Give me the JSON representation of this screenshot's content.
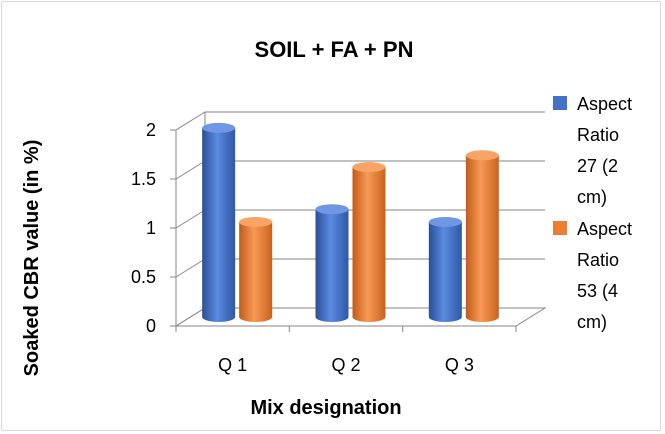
{
  "chart_data": {
    "type": "bar",
    "title": "SOIL + FA + PN",
    "xlabel": "Mix designation",
    "ylabel": "Soaked CBR value (in %)",
    "categories": [
      "Q 1",
      "Q 2",
      "Q 3"
    ],
    "ylim": [
      0,
      2
    ],
    "yticks": [
      "0",
      "0.5",
      "1",
      "1.5",
      "2"
    ],
    "grid": true,
    "legend_position": "right",
    "series": [
      {
        "name": "Aspect Ratio 27 (2 cm)",
        "legend_lines": [
          "Aspect",
          "Ratio",
          "27 (2",
          "cm)"
        ],
        "color": "#4472c4",
        "values": [
          1.93,
          1.1,
          0.97
        ]
      },
      {
        "name": "Aspect Ratio 53 (4 cm)",
        "legend_lines": [
          "Aspect",
          "Ratio",
          "53 (4",
          "cm)"
        ],
        "color": "#ed7d31",
        "values": [
          0.97,
          1.53,
          1.65
        ]
      }
    ]
  }
}
